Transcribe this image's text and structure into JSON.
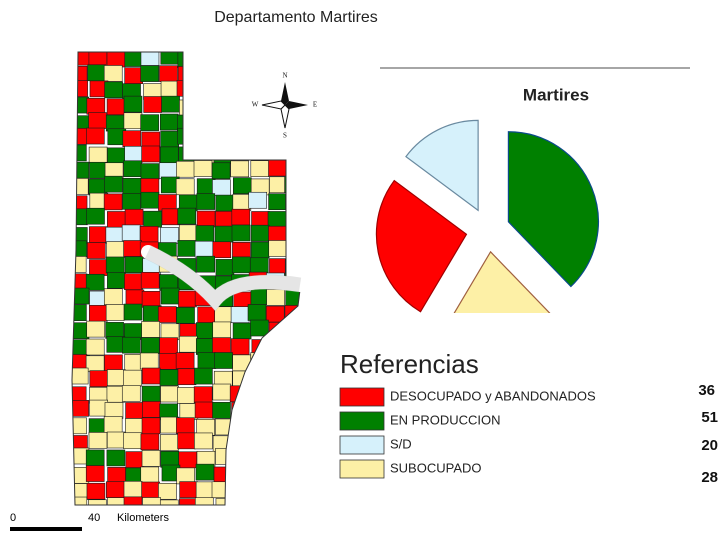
{
  "map": {
    "title": "Departamento Martires",
    "compass": {
      "north": "N",
      "south": "S",
      "east": "E",
      "west": "W"
    },
    "scale": {
      "start": "0",
      "end": "40",
      "unit": "Kilometers"
    }
  },
  "chart_data": {
    "type": "pie",
    "title": "Martires",
    "legend_title": "Referencias",
    "categories": [
      "DESOCUPADO y ABANDONADOS",
      "EN PRODUCCION",
      "S/D",
      "SUBOCUPADO"
    ],
    "values": [
      36,
      51,
      20,
      28
    ],
    "colors": [
      "#ff0000",
      "#008000",
      "#d6f1fb",
      "#fdf0a6"
    ]
  }
}
